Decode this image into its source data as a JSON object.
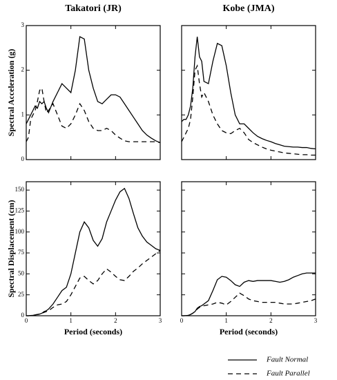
{
  "chart_data": [
    {
      "type": "line",
      "title": "Takatori (JR)",
      "ylabel": "Spectral Acceleration (g)",
      "x": [
        0,
        0.05,
        0.1,
        0.15,
        0.2,
        0.25,
        0.3,
        0.35,
        0.4,
        0.45,
        0.5,
        0.6,
        0.7,
        0.8,
        0.9,
        1.0,
        1.1,
        1.2,
        1.3,
        1.4,
        1.5,
        1.6,
        1.7,
        1.8,
        1.9,
        2.0,
        2.1,
        2.2,
        2.3,
        2.4,
        2.5,
        2.6,
        2.7,
        2.8,
        2.9,
        3.0
      ],
      "xlim": [
        0,
        3
      ],
      "xticks": [
        0,
        1,
        2,
        3
      ],
      "xtick_labels": false,
      "ylim": [
        0,
        3
      ],
      "yticks": [
        0,
        1,
        2,
        3
      ],
      "ytick_labels": true,
      "series": [
        {
          "name": "Fault Normal",
          "color": "#000000",
          "linestyle": "solid",
          "values": [
            0.8,
            0.9,
            1.0,
            1.1,
            1.2,
            1.15,
            1.3,
            1.25,
            1.3,
            1.15,
            1.05,
            1.3,
            1.5,
            1.7,
            1.6,
            1.5,
            2.0,
            2.75,
            2.7,
            2.0,
            1.6,
            1.3,
            1.25,
            1.35,
            1.45,
            1.45,
            1.4,
            1.25,
            1.1,
            0.95,
            0.8,
            0.65,
            0.55,
            0.48,
            0.42,
            0.38
          ]
        },
        {
          "name": "Fault Parallel",
          "color": "#000000",
          "linestyle": "dashed",
          "values": [
            0.4,
            0.5,
            0.9,
            1.0,
            1.1,
            1.3,
            1.55,
            1.6,
            1.3,
            1.05,
            1.1,
            1.25,
            1.0,
            0.75,
            0.7,
            0.8,
            1.0,
            1.25,
            1.1,
            0.85,
            0.7,
            0.65,
            0.65,
            0.7,
            0.65,
            0.55,
            0.48,
            0.42,
            0.4,
            0.4,
            0.4,
            0.4,
            0.4,
            0.4,
            0.4,
            0.38
          ]
        }
      ]
    },
    {
      "type": "line",
      "title": "Kobe (JMA)",
      "x": [
        0,
        0.05,
        0.1,
        0.15,
        0.2,
        0.25,
        0.3,
        0.35,
        0.4,
        0.45,
        0.5,
        0.6,
        0.7,
        0.8,
        0.9,
        1.0,
        1.1,
        1.2,
        1.3,
        1.4,
        1.5,
        1.6,
        1.7,
        1.8,
        1.9,
        2.0,
        2.1,
        2.2,
        2.3,
        2.4,
        2.5,
        2.6,
        2.7,
        2.8,
        2.9,
        3.0
      ],
      "xlim": [
        0,
        3
      ],
      "xticks": [
        0,
        1,
        2,
        3
      ],
      "xtick_labels": false,
      "ylim": [
        0,
        3
      ],
      "yticks": [
        0,
        1,
        2,
        3
      ],
      "ytick_labels": false,
      "series": [
        {
          "color": "#000000",
          "linestyle": "solid",
          "values": [
            0.85,
            0.9,
            0.9,
            1.0,
            1.2,
            1.6,
            2.3,
            2.75,
            2.3,
            2.2,
            1.75,
            1.7,
            2.2,
            2.6,
            2.55,
            2.1,
            1.5,
            1.0,
            0.8,
            0.8,
            0.7,
            0.6,
            0.52,
            0.47,
            0.43,
            0.4,
            0.36,
            0.33,
            0.3,
            0.29,
            0.28,
            0.28,
            0.27,
            0.27,
            0.25,
            0.24
          ]
        },
        {
          "color": "#000000",
          "linestyle": "dashed",
          "values": [
            0.4,
            0.5,
            0.6,
            0.7,
            0.9,
            1.4,
            2.0,
            2.1,
            1.7,
            1.4,
            1.5,
            1.3,
            1.0,
            0.8,
            0.65,
            0.6,
            0.58,
            0.65,
            0.7,
            0.6,
            0.45,
            0.38,
            0.33,
            0.28,
            0.24,
            0.21,
            0.19,
            0.17,
            0.15,
            0.14,
            0.13,
            0.12,
            0.11,
            0.11,
            0.1,
            0.1
          ]
        }
      ]
    },
    {
      "type": "line",
      "ylabel": "Spectral Displacement (cm)",
      "xlabel": "Period (seconds)",
      "x": [
        0,
        0.05,
        0.1,
        0.15,
        0.2,
        0.25,
        0.3,
        0.35,
        0.4,
        0.45,
        0.5,
        0.6,
        0.7,
        0.8,
        0.9,
        1.0,
        1.1,
        1.2,
        1.3,
        1.4,
        1.5,
        1.6,
        1.7,
        1.8,
        1.9,
        2.0,
        2.1,
        2.2,
        2.3,
        2.4,
        2.5,
        2.6,
        2.7,
        2.8,
        2.9,
        3.0
      ],
      "xlim": [
        0,
        3
      ],
      "xticks": [
        0,
        1,
        2,
        3
      ],
      "xtick_labels": true,
      "ylim": [
        0,
        160
      ],
      "yticks": [
        0,
        25,
        50,
        75,
        100,
        125,
        150
      ],
      "ytick_labels": true,
      "series": [
        {
          "color": "#000000",
          "linestyle": "solid",
          "values": [
            0,
            0,
            0.3,
            0.5,
            1,
            1.5,
            2,
            3,
            5,
            6,
            8,
            14,
            22,
            30,
            34,
            50,
            75,
            100,
            112,
            105,
            90,
            83,
            92,
            112,
            125,
            138,
            148,
            152,
            140,
            122,
            105,
            95,
            88,
            84,
            80,
            78
          ]
        },
        {
          "color": "#000000",
          "linestyle": "dashed",
          "values": [
            0,
            0,
            0.3,
            0.5,
            1,
            1.5,
            2,
            3,
            4,
            5,
            6,
            10,
            13,
            14,
            17,
            25,
            35,
            45,
            47,
            42,
            38,
            42,
            50,
            56,
            52,
            47,
            43,
            42,
            47,
            53,
            57,
            62,
            66,
            70,
            74,
            78
          ]
        }
      ]
    },
    {
      "type": "line",
      "xlabel": "Period (seconds)",
      "x": [
        0,
        0.05,
        0.1,
        0.15,
        0.2,
        0.25,
        0.3,
        0.35,
        0.4,
        0.45,
        0.5,
        0.6,
        0.7,
        0.8,
        0.9,
        1.0,
        1.1,
        1.2,
        1.3,
        1.4,
        1.5,
        1.6,
        1.7,
        1.8,
        1.9,
        2.0,
        2.1,
        2.2,
        2.3,
        2.4,
        2.5,
        2.6,
        2.7,
        2.8,
        2.9,
        3.0
      ],
      "xlim": [
        0,
        3
      ],
      "xticks": [
        0,
        1,
        2,
        3
      ],
      "xtick_labels": true,
      "ylim": [
        0,
        160
      ],
      "yticks": [
        0,
        25,
        50,
        75,
        100,
        125,
        150
      ],
      "ytick_labels": false,
      "series": [
        {
          "color": "#000000",
          "linestyle": "solid",
          "values": [
            0,
            0,
            0.2,
            0.5,
            1.5,
            3,
            5,
            9,
            11,
            12,
            14,
            18,
            30,
            43,
            47,
            46,
            42,
            37,
            35,
            40,
            42,
            41,
            42,
            42,
            42,
            42,
            41,
            40,
            41,
            43,
            46,
            48,
            50,
            51,
            51,
            51
          ]
        },
        {
          "color": "#000000",
          "linestyle": "dashed",
          "values": [
            0,
            0,
            0.2,
            0.5,
            1.5,
            3,
            5,
            8,
            10,
            11,
            12,
            13,
            14,
            16,
            15,
            13,
            17,
            22,
            27,
            24,
            20,
            18,
            17,
            16,
            16,
            16,
            16,
            15,
            14,
            14,
            14,
            15,
            16,
            17,
            18,
            20
          ]
        }
      ]
    }
  ]
}
